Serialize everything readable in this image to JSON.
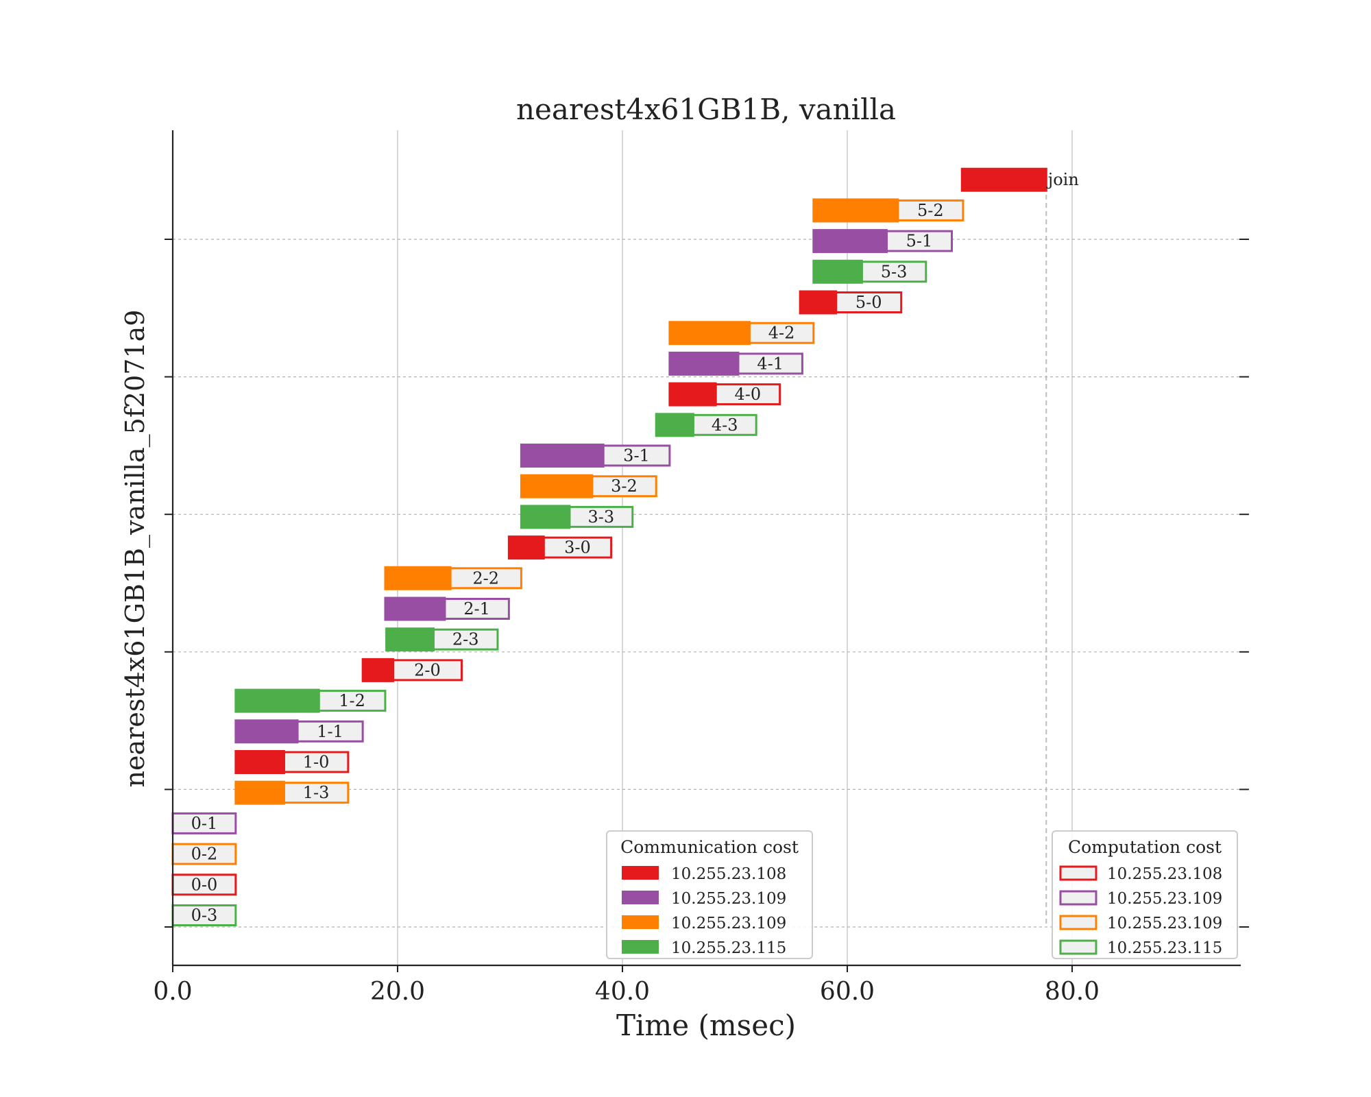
{
  "chart_data": {
    "type": "bar",
    "subtype": "gantt",
    "title": "nearest4x61GB1B, vanilla",
    "xlabel": "Time (msec)",
    "ylabel": "nearest4x61GB1B_vanilla_5f2071a9",
    "xlim": [
      0,
      95
    ],
    "xticks": [
      0,
      20,
      40,
      60,
      80
    ],
    "xtick_labels": [
      "0.0",
      "20.0",
      "40.0",
      "60.0",
      "80.0"
    ],
    "x_grid": true,
    "y_grid": "dashed",
    "rows": 25,
    "colors": {
      "108": "#e41a1c",
      "109a": "#984ea3",
      "109b": "#ff7f00",
      "115": "#4daf4a",
      "computation_fill": "#f0f0f0"
    },
    "tasks": [
      {
        "label": "join",
        "host": "108",
        "row": 24,
        "comm_start": 70.2,
        "comm_end": 77.7,
        "comp_end": 77.7
      },
      {
        "label": "5-2",
        "host": "109b",
        "row": 23,
        "comm_start": 57.0,
        "comm_end": 64.5,
        "comp_end": 70.3
      },
      {
        "label": "5-1",
        "host": "109a",
        "row": 22,
        "comm_start": 57.0,
        "comm_end": 63.5,
        "comp_end": 69.3
      },
      {
        "label": "5-3",
        "host": "115",
        "row": 21,
        "comm_start": 57.0,
        "comm_end": 61.3,
        "comp_end": 67.0
      },
      {
        "label": "5-0",
        "host": "108",
        "row": 20,
        "comm_start": 55.8,
        "comm_end": 59.0,
        "comp_end": 64.8
      },
      {
        "label": "4-2",
        "host": "109b",
        "row": 19,
        "comm_start": 44.2,
        "comm_end": 51.3,
        "comp_end": 57.0
      },
      {
        "label": "4-1",
        "host": "109a",
        "row": 18,
        "comm_start": 44.2,
        "comm_end": 50.3,
        "comp_end": 56.0
      },
      {
        "label": "4-0",
        "host": "108",
        "row": 17,
        "comm_start": 44.2,
        "comm_end": 48.3,
        "comp_end": 54.0
      },
      {
        "label": "4-3",
        "host": "115",
        "row": 16,
        "comm_start": 43.0,
        "comm_end": 46.3,
        "comp_end": 51.9
      },
      {
        "label": "3-1",
        "host": "109a",
        "row": 15,
        "comm_start": 31.0,
        "comm_end": 38.3,
        "comp_end": 44.2
      },
      {
        "label": "3-2",
        "host": "109b",
        "row": 14,
        "comm_start": 31.0,
        "comm_end": 37.3,
        "comp_end": 43.0
      },
      {
        "label": "3-3",
        "host": "115",
        "row": 13,
        "comm_start": 31.0,
        "comm_end": 35.3,
        "comp_end": 40.9
      },
      {
        "label": "3-0",
        "host": "108",
        "row": 12,
        "comm_start": 29.9,
        "comm_end": 33.0,
        "comp_end": 39.0
      },
      {
        "label": "2-2",
        "host": "109b",
        "row": 11,
        "comm_start": 18.9,
        "comm_end": 24.7,
        "comp_end": 31.0
      },
      {
        "label": "2-1",
        "host": "109a",
        "row": 10,
        "comm_start": 18.9,
        "comm_end": 24.2,
        "comp_end": 29.9
      },
      {
        "label": "2-3",
        "host": "115",
        "row": 9,
        "comm_start": 19.0,
        "comm_end": 23.2,
        "comp_end": 28.9
      },
      {
        "label": "2-0",
        "host": "108",
        "row": 8,
        "comm_start": 16.9,
        "comm_end": 19.6,
        "comp_end": 25.7
      },
      {
        "label": "1-2",
        "host": "115",
        "row": 7,
        "comm_start": 5.6,
        "comm_end": 13.0,
        "comp_end": 18.9
      },
      {
        "label": "1-1",
        "host": "109a",
        "row": 6,
        "comm_start": 5.6,
        "comm_end": 11.1,
        "comp_end": 16.9
      },
      {
        "label": "1-0",
        "host": "108",
        "row": 5,
        "comm_start": 5.6,
        "comm_end": 9.9,
        "comp_end": 15.6
      },
      {
        "label": "1-3",
        "host": "109b",
        "row": 4,
        "comm_start": 5.6,
        "comm_end": 9.9,
        "comp_end": 15.6
      },
      {
        "label": "0-1",
        "host": "109a",
        "row": 3,
        "comm_start": 0.0,
        "comm_end": 0.0,
        "comp_end": 5.6
      },
      {
        "label": "0-2",
        "host": "109b",
        "row": 2,
        "comm_start": 0.0,
        "comm_end": 0.0,
        "comp_end": 5.6
      },
      {
        "label": "0-0",
        "host": "108",
        "row": 1,
        "comm_start": 0.0,
        "comm_end": 0.0,
        "comp_end": 5.6
      },
      {
        "label": "0-3",
        "host": "115",
        "row": 0,
        "comm_start": 0.0,
        "comm_end": 0.0,
        "comp_end": 5.6
      }
    ],
    "join_line_x": 77.7,
    "legends": [
      {
        "title": "Communication cost",
        "style": "filled",
        "entries": [
          {
            "label": "10.255.23.108",
            "host": "108"
          },
          {
            "label": "10.255.23.109",
            "host": "109a"
          },
          {
            "label": "10.255.23.109",
            "host": "109b"
          },
          {
            "label": "10.255.23.115",
            "host": "115"
          }
        ]
      },
      {
        "title": "Computation cost",
        "style": "outlined",
        "entries": [
          {
            "label": "10.255.23.108",
            "host": "108"
          },
          {
            "label": "10.255.23.109",
            "host": "109a"
          },
          {
            "label": "10.255.23.109",
            "host": "109b"
          },
          {
            "label": "10.255.23.115",
            "host": "115"
          }
        ]
      }
    ]
  }
}
